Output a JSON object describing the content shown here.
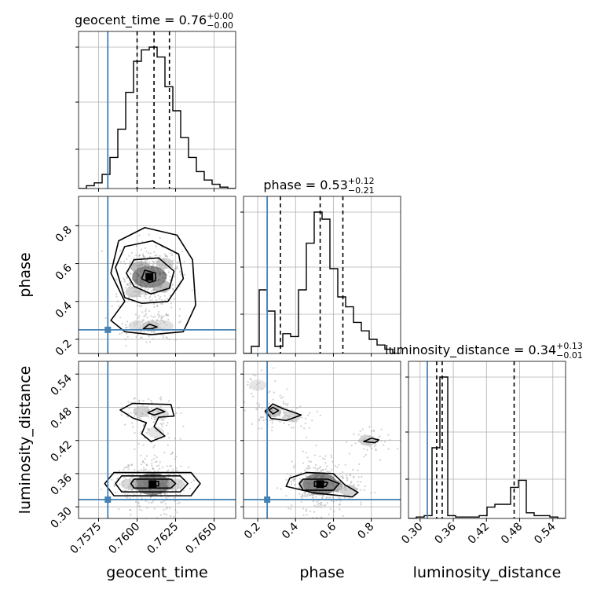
{
  "chart_data": {
    "type": "corner",
    "parameters": [
      "geocent_time",
      "phase",
      "luminosity_distance"
    ],
    "truths": {
      "geocent_time": 0.7581,
      "phase": 0.25,
      "luminosity_distance": 0.313
    },
    "colors": {
      "truth": "#4682b4",
      "hist": "#000000",
      "grid": "#b0b0b0",
      "scatter": "#9a9a9a"
    },
    "grid": true,
    "titles": [
      {
        "param": "geocent_time",
        "text": "geocent_time = 0.76",
        "sup": "+0.00",
        "sub": "−0.00"
      },
      {
        "param": "phase",
        "text": "phase = 0.53",
        "sup": "+0.12",
        "sub": "−0.21"
      },
      {
        "param": "luminosity_distance",
        "text": "luminosity_distance = 0.34",
        "sup": "+0.13",
        "sub": "−0.01"
      }
    ],
    "axis_labels": {
      "x": [
        "geocent_time",
        "phase",
        "luminosity_distance"
      ],
      "y": [
        "phase",
        "luminosity_distance"
      ]
    },
    "ranges": {
      "geocent_time": [
        0.7562,
        0.7664
      ],
      "phase": [
        0.125,
        0.955
      ],
      "luminosity_distance": [
        0.279,
        0.563
      ]
    },
    "ticks": {
      "geocent_time": [
        0.7575,
        0.76,
        0.7625,
        0.765
      ],
      "phase": [
        0.2,
        0.4,
        0.6,
        0.8
      ],
      "luminosity_distance": [
        0.3,
        0.36,
        0.42,
        0.48,
        0.54
      ]
    },
    "tick_labels": {
      "geocent_time": [
        "0.7575",
        "0.7600",
        "0.7625",
        "0.7650"
      ],
      "phase": [
        "0.2",
        "0.4",
        "0.6",
        "0.8"
      ],
      "luminosity_distance": [
        "0.30",
        "0.36",
        "0.42",
        "0.48",
        "0.54"
      ]
    },
    "histograms": {
      "geocent_time": {
        "edges": [
          0.7562,
          0.75671,
          0.75722,
          0.75773,
          0.75824,
          0.75875,
          0.75926,
          0.75977,
          0.76028,
          0.76079,
          0.7613,
          0.76181,
          0.76232,
          0.76283,
          0.76334,
          0.76385,
          0.76436,
          0.76487,
          0.76538,
          0.76589,
          0.7664
        ],
        "counts": [
          0,
          0.02,
          0.04,
          0.1,
          0.22,
          0.42,
          0.68,
          0.9,
          0.98,
          1.0,
          0.93,
          0.72,
          0.55,
          0.36,
          0.22,
          0.12,
          0.06,
          0.03,
          0.01,
          0
        ],
        "quantiles": [
          0.76,
          0.7611,
          0.7621
        ]
      },
      "phase": {
        "edges": [
          0.125,
          0.1665,
          0.208,
          0.2495,
          0.291,
          0.3325,
          0.374,
          0.4155,
          0.457,
          0.4985,
          0.54,
          0.5815,
          0.623,
          0.6645,
          0.706,
          0.7475,
          0.789,
          0.8305,
          0.872,
          0.9135,
          0.955
        ],
        "counts": [
          0,
          0.05,
          0.45,
          0.3,
          0.05,
          0.14,
          0.12,
          0.45,
          0.78,
          1.0,
          0.95,
          0.6,
          0.4,
          0.33,
          0.22,
          0.16,
          0.1,
          0.06,
          0.03,
          0
        ],
        "quantiles": [
          0.32,
          0.53,
          0.65
        ]
      },
      "luminosity_distance": {
        "edges": [
          0.279,
          0.2932,
          0.3074,
          0.3216,
          0.3358,
          0.35,
          0.3642,
          0.3784,
          0.3926,
          0.4068,
          0.421,
          0.4352,
          0.4494,
          0.4636,
          0.4778,
          0.492,
          0.5062,
          0.5204,
          0.5346,
          0.5488,
          0.563
        ],
        "counts": [
          0,
          0.01,
          0.02,
          0.5,
          1.0,
          0.02,
          0.01,
          0.01,
          0.01,
          0.02,
          0.08,
          0.1,
          0.1,
          0.22,
          0.27,
          0.04,
          0.02,
          0.02,
          0.01,
          0
        ],
        "quantiles": [
          0.33,
          0.34,
          0.47
        ]
      }
    },
    "contour_panels": [
      {
        "x": "geocent_time",
        "y": "phase",
        "density": [
          {
            "x": 0.7608,
            "y": 0.53,
            "value": 1.0
          },
          {
            "x": 0.7602,
            "y": 0.58,
            "value": 0.55
          },
          {
            "x": 0.7616,
            "y": 0.48,
            "value": 0.55
          },
          {
            "x": 0.7598,
            "y": 0.45,
            "value": 0.35
          },
          {
            "x": 0.7618,
            "y": 0.6,
            "value": 0.35
          },
          {
            "x": 0.7609,
            "y": 0.27,
            "value": 0.4
          },
          {
            "x": 0.76,
            "y": 0.27,
            "value": 0.22
          },
          {
            "x": 0.7618,
            "y": 0.27,
            "value": 0.22
          }
        ],
        "contours": [
          [
            [
              0.7608,
              0.5
            ],
            [
              0.7612,
              0.51
            ],
            [
              0.7612,
              0.55
            ],
            [
              0.7605,
              0.565
            ],
            [
              0.7603,
              0.52
            ],
            [
              0.7608,
              0.5
            ]
          ],
          [
            [
              0.7598,
              0.48
            ],
            [
              0.7609,
              0.44
            ],
            [
              0.7621,
              0.47
            ],
            [
              0.7624,
              0.56
            ],
            [
              0.7614,
              0.63
            ],
            [
              0.7598,
              0.62
            ],
            [
              0.7593,
              0.55
            ],
            [
              0.7598,
              0.48
            ]
          ],
          [
            [
              0.7592,
              0.42
            ],
            [
              0.7603,
              0.39
            ],
            [
              0.762,
              0.4
            ],
            [
              0.763,
              0.52
            ],
            [
              0.7627,
              0.65
            ],
            [
              0.761,
              0.72
            ],
            [
              0.7592,
              0.69
            ],
            [
              0.7586,
              0.58
            ],
            [
              0.7592,
              0.42
            ]
          ],
          [
            [
              0.7592,
              0.24
            ],
            [
              0.7609,
              0.225
            ],
            [
              0.763,
              0.24
            ],
            [
              0.7638,
              0.38
            ],
            [
              0.7636,
              0.62
            ],
            [
              0.7626,
              0.75
            ],
            [
              0.7605,
              0.79
            ],
            [
              0.7588,
              0.72
            ],
            [
              0.7583,
              0.55
            ],
            [
              0.7592,
              0.4
            ],
            [
              0.7583,
              0.3
            ],
            [
              0.7592,
              0.24
            ]
          ],
          [
            [
              0.7604,
              0.255
            ],
            [
              0.7608,
              0.28
            ],
            [
              0.7613,
              0.265
            ],
            [
              0.7609,
              0.255
            ],
            [
              0.7604,
              0.255
            ]
          ]
        ]
      },
      {
        "x": "geocent_time",
        "y": "luminosity_distance",
        "density": [
          {
            "x": 0.761,
            "y": 0.341,
            "value": 1.0
          },
          {
            "x": 0.7602,
            "y": 0.341,
            "value": 0.6
          },
          {
            "x": 0.7618,
            "y": 0.341,
            "value": 0.6
          },
          {
            "x": 0.7595,
            "y": 0.341,
            "value": 0.3
          },
          {
            "x": 0.7625,
            "y": 0.341,
            "value": 0.3
          },
          {
            "x": 0.7603,
            "y": 0.472,
            "value": 0.35
          },
          {
            "x": 0.7615,
            "y": 0.468,
            "value": 0.25
          },
          {
            "x": 0.7612,
            "y": 0.435,
            "value": 0.18
          }
        ],
        "contours": [
          [
            [
              0.7609,
              0.337
            ],
            [
              0.7614,
              0.338
            ],
            [
              0.7614,
              0.346
            ],
            [
              0.7609,
              0.346
            ],
            [
              0.7609,
              0.337
            ]
          ],
          [
            [
              0.7598,
              0.334
            ],
            [
              0.7622,
              0.334
            ],
            [
              0.7625,
              0.342
            ],
            [
              0.7622,
              0.35
            ],
            [
              0.7598,
              0.35
            ],
            [
              0.7596,
              0.342
            ],
            [
              0.7598,
              0.334
            ]
          ],
          [
            [
              0.759,
              0.327
            ],
            [
              0.7628,
              0.327
            ],
            [
              0.7633,
              0.342
            ],
            [
              0.7628,
              0.356
            ],
            [
              0.759,
              0.356
            ],
            [
              0.7586,
              0.342
            ],
            [
              0.759,
              0.327
            ]
          ],
          [
            [
              0.7585,
              0.32
            ],
            [
              0.7635,
              0.32
            ],
            [
              0.7641,
              0.342
            ],
            [
              0.7635,
              0.362
            ],
            [
              0.7585,
              0.362
            ],
            [
              0.7579,
              0.342
            ],
            [
              0.7585,
              0.32
            ]
          ],
          [
            [
              0.7589,
              0.475
            ],
            [
              0.7597,
              0.487
            ],
            [
              0.7622,
              0.485
            ],
            [
              0.7624,
              0.464
            ],
            [
              0.7614,
              0.462
            ],
            [
              0.7611,
              0.445
            ],
            [
              0.7618,
              0.428
            ],
            [
              0.7609,
              0.418
            ],
            [
              0.7603,
              0.432
            ],
            [
              0.7606,
              0.452
            ],
            [
              0.7597,
              0.461
            ],
            [
              0.7589,
              0.475
            ]
          ],
          [
            [
              0.7607,
              0.47
            ],
            [
              0.7613,
              0.478
            ],
            [
              0.7618,
              0.472
            ],
            [
              0.7611,
              0.466
            ],
            [
              0.7607,
              0.47
            ]
          ]
        ]
      },
      {
        "x": "phase",
        "y": "luminosity_distance",
        "density": [
          {
            "x": 0.53,
            "y": 0.341,
            "value": 1.0
          },
          {
            "x": 0.47,
            "y": 0.341,
            "value": 0.6
          },
          {
            "x": 0.6,
            "y": 0.338,
            "value": 0.55
          },
          {
            "x": 0.68,
            "y": 0.33,
            "value": 0.35
          },
          {
            "x": 0.28,
            "y": 0.472,
            "value": 0.45
          },
          {
            "x": 0.38,
            "y": 0.463,
            "value": 0.3
          },
          {
            "x": 0.78,
            "y": 0.42,
            "value": 0.35
          },
          {
            "x": 0.2,
            "y": 0.52,
            "value": 0.18
          }
        ],
        "contours": [
          [
            [
              0.5,
              0.337
            ],
            [
              0.56,
              0.337
            ],
            [
              0.57,
              0.344
            ],
            [
              0.5,
              0.346
            ],
            [
              0.5,
              0.337
            ]
          ],
          [
            [
              0.44,
              0.33
            ],
            [
              0.6,
              0.33
            ],
            [
              0.63,
              0.342
            ],
            [
              0.57,
              0.35
            ],
            [
              0.44,
              0.35
            ],
            [
              0.42,
              0.342
            ],
            [
              0.44,
              0.33
            ]
          ],
          [
            [
              0.35,
              0.337
            ],
            [
              0.5,
              0.325
            ],
            [
              0.7,
              0.318
            ],
            [
              0.73,
              0.326
            ],
            [
              0.66,
              0.34
            ],
            [
              0.6,
              0.36
            ],
            [
              0.46,
              0.362
            ],
            [
              0.37,
              0.352
            ],
            [
              0.35,
              0.337
            ]
          ],
          [
            [
              0.24,
              0.473
            ],
            [
              0.28,
              0.486
            ],
            [
              0.33,
              0.478
            ],
            [
              0.43,
              0.466
            ],
            [
              0.35,
              0.456
            ],
            [
              0.27,
              0.46
            ],
            [
              0.24,
              0.473
            ]
          ],
          [
            [
              0.26,
              0.475
            ],
            [
              0.28,
              0.48
            ],
            [
              0.31,
              0.474
            ],
            [
              0.28,
              0.468
            ],
            [
              0.26,
              0.475
            ]
          ],
          [
            [
              0.76,
              0.418
            ],
            [
              0.82,
              0.416
            ],
            [
              0.84,
              0.421
            ],
            [
              0.8,
              0.424
            ],
            [
              0.76,
              0.418
            ]
          ]
        ]
      }
    ]
  }
}
